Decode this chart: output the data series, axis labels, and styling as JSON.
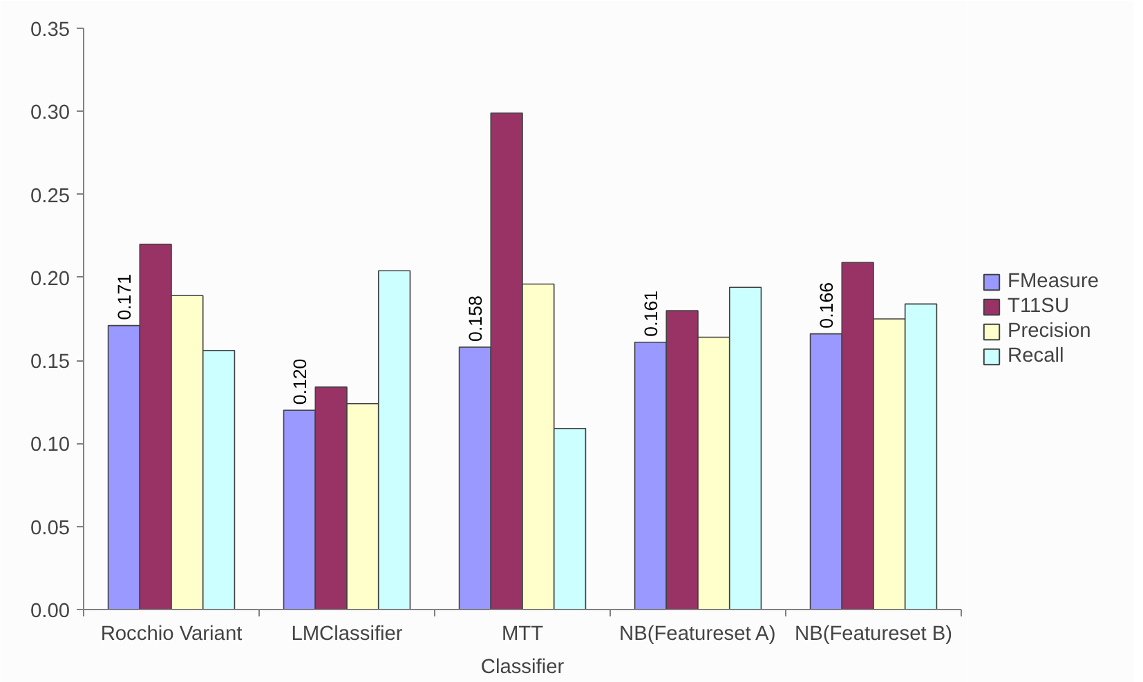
{
  "chart_data": {
    "type": "bar",
    "xlabel": "Classifier",
    "categories": [
      "Rocchio Variant",
      "LMClassifier",
      "MTT",
      "NB(Featureset A)",
      "NB(Featureset B)"
    ],
    "series": [
      {
        "name": "FMeasure",
        "color": "#9999ff",
        "values": [
          0.171,
          0.12,
          0.158,
          0.161,
          0.166
        ],
        "value_labels": [
          "0.171",
          "0.120",
          "0.158",
          "0.161",
          "0.166"
        ]
      },
      {
        "name": "T11SU",
        "color": "#993366",
        "values": [
          0.22,
          0.134,
          0.299,
          0.18,
          0.209
        ]
      },
      {
        "name": "Precision",
        "color": "#ffffcc",
        "values": [
          0.189,
          0.124,
          0.196,
          0.164,
          0.175
        ]
      },
      {
        "name": "Recall",
        "color": "#ccffff",
        "values": [
          0.156,
          0.204,
          0.109,
          0.194,
          0.184
        ]
      }
    ],
    "ylim": [
      0,
      0.35
    ],
    "yticks": [
      "0.00",
      "0.05",
      "0.10",
      "0.15",
      "0.20",
      "0.25",
      "0.30",
      "0.35"
    ],
    "grid": false,
    "legend": "right"
  }
}
